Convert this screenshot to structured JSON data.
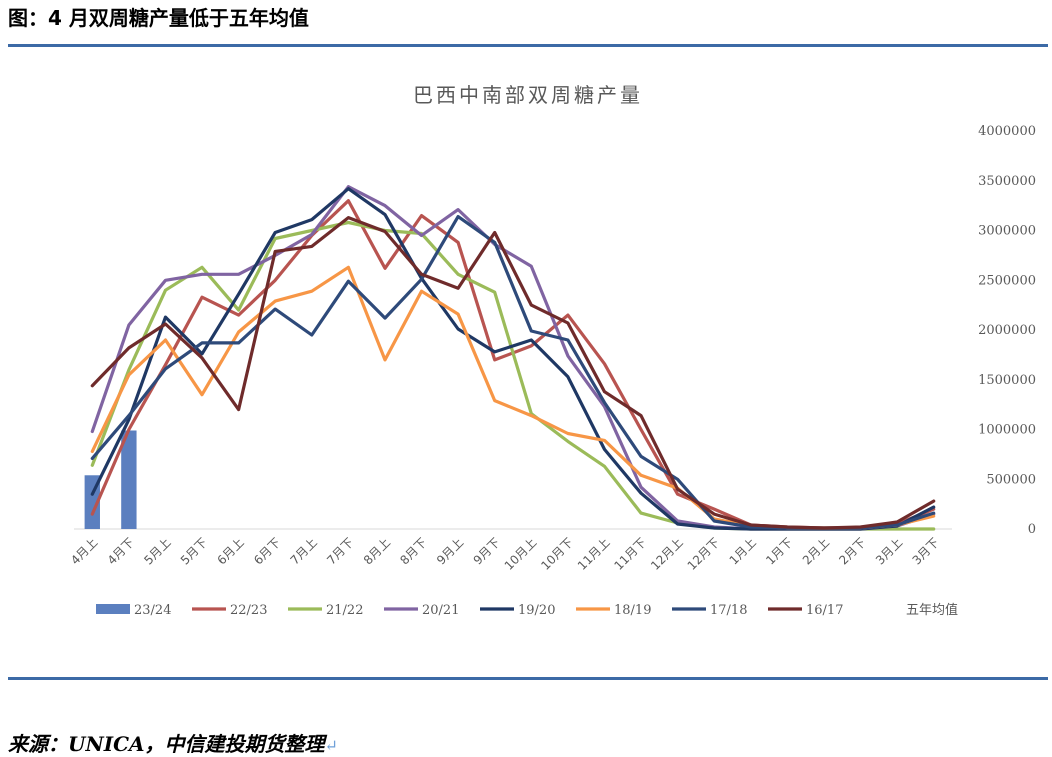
{
  "figure_title": "图：4 月双周糖产量低于五年均值",
  "source_text": "来源：UNICA，中信建投期货整理",
  "return_mark": "↵",
  "chart_data": {
    "type": "line",
    "title": "巴西中南部双周糖产量",
    "xlabel": "",
    "ylabel": "",
    "y_axis_position": "right",
    "ylim": [
      0,
      4000000
    ],
    "yticks": [
      0,
      500000,
      1000000,
      1500000,
      2000000,
      2500000,
      3000000,
      3500000,
      4000000
    ],
    "grid": false,
    "legend_position": "bottom",
    "categories": [
      "4月上",
      "4月下",
      "5月上",
      "5月下",
      "6月上",
      "6月下",
      "7月上",
      "7月下",
      "8月上",
      "8月下",
      "9月上",
      "9月下",
      "10月上",
      "10月下",
      "11月上",
      "11月下",
      "12月上",
      "12月下",
      "1月上",
      "1月下",
      "2月上",
      "2月下",
      "3月上",
      "3月下"
    ],
    "bar_series": {
      "name": "23/24",
      "color": "#5b7fbf",
      "values": [
        540000,
        990000
      ]
    },
    "series": [
      {
        "name": "22/23",
        "color": "#b85450",
        "values": [
          150000,
          1000000,
          1650000,
          2330000,
          2150000,
          2500000,
          2950000,
          3300000,
          2620000,
          3150000,
          2880000,
          1700000,
          1840000,
          2150000,
          1660000,
          1000000,
          350000,
          200000,
          40000,
          20000,
          10000,
          10000,
          50000,
          200000
        ]
      },
      {
        "name": "21/22",
        "color": "#9bbb59",
        "values": [
          640000,
          1600000,
          2400000,
          2630000,
          2200000,
          2920000,
          3000000,
          3080000,
          3000000,
          2970000,
          2560000,
          2380000,
          1160000,
          880000,
          630000,
          160000,
          60000,
          10000,
          0,
          0,
          0,
          0,
          0,
          0
        ]
      },
      {
        "name": "20/21",
        "color": "#8064a2",
        "values": [
          980000,
          2050000,
          2500000,
          2560000,
          2560000,
          2750000,
          2960000,
          3440000,
          3250000,
          2950000,
          3210000,
          2860000,
          2640000,
          1740000,
          1230000,
          420000,
          80000,
          20000,
          0,
          0,
          0,
          0,
          30000,
          150000
        ]
      },
      {
        "name": "19/20",
        "color": "#1f3864",
        "values": [
          350000,
          1100000,
          2130000,
          1760000,
          2360000,
          2980000,
          3110000,
          3420000,
          3160000,
          2520000,
          2010000,
          1780000,
          1900000,
          1530000,
          800000,
          360000,
          50000,
          10000,
          0,
          0,
          0,
          0,
          30000,
          220000
        ]
      },
      {
        "name": "18/19",
        "color": "#f79646",
        "values": [
          780000,
          1550000,
          1900000,
          1350000,
          1980000,
          2290000,
          2390000,
          2630000,
          1700000,
          2390000,
          2160000,
          1290000,
          1140000,
          960000,
          890000,
          540000,
          410000,
          100000,
          30000,
          10000,
          10000,
          10000,
          40000,
          130000
        ]
      },
      {
        "name": "17/18",
        "color": "#2e4a7a",
        "values": [
          710000,
          1140000,
          1610000,
          1870000,
          1870000,
          2210000,
          1950000,
          2490000,
          2120000,
          2510000,
          3140000,
          2880000,
          1990000,
          1900000,
          1270000,
          730000,
          500000,
          80000,
          20000,
          10000,
          10000,
          10000,
          40000,
          160000
        ]
      },
      {
        "name": "16/17",
        "color": "#6f2b2b",
        "values": [
          1440000,
          1820000,
          2060000,
          1720000,
          1200000,
          2790000,
          2840000,
          3130000,
          2990000,
          2560000,
          2420000,
          2980000,
          2250000,
          2070000,
          1380000,
          1140000,
          400000,
          150000,
          40000,
          20000,
          10000,
          20000,
          70000,
          280000
        ]
      }
    ],
    "legend_entries": [
      "23/24",
      "22/23",
      "21/22",
      "20/21",
      "19/20",
      "18/19",
      "17/18",
      "16/17",
      "五年均值"
    ]
  }
}
